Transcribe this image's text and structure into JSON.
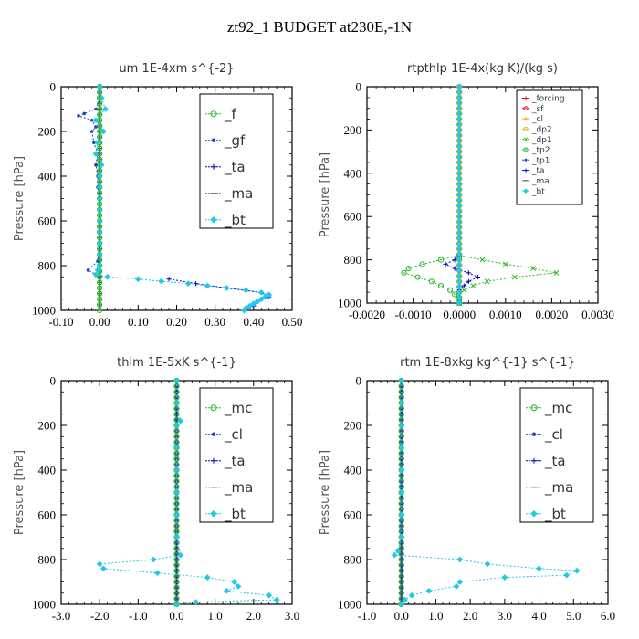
{
  "figure_title": "zt92_1  BUDGET at230E,-1N",
  "colors": {
    "green": "#22bb22",
    "blue": "#1a44cc",
    "navy": "#0000cc",
    "cyan": "#22c8e8",
    "red": "#e01010",
    "orange": "#ff9900",
    "yellow": "#ddbb00",
    "gray": "#666666"
  },
  "chart_data": [
    {
      "type": "line",
      "title": "um   1E-4xm s^{-2}",
      "ylabel": "Pressure [hPa]",
      "xlim": [
        -0.1,
        0.5
      ],
      "ylim": [
        1000,
        0
      ],
      "xticks": [
        "-0.10",
        "0.00",
        "0.10",
        "0.20",
        "0.30",
        "0.40",
        "0.50"
      ],
      "yticks": [
        "0",
        "200",
        "400",
        "600",
        "800",
        "1000"
      ],
      "legend_position": "top-right",
      "series": [
        {
          "name": "_f",
          "color": "#22bb22",
          "marker": "circle",
          "y": [
            0,
            100,
            200,
            300,
            400,
            500,
            600,
            700,
            800,
            900,
            1000
          ],
          "x": [
            0,
            0,
            0,
            0,
            0,
            0,
            0,
            0,
            0,
            0,
            0
          ]
        },
        {
          "name": "_gf",
          "color": "#1a44cc",
          "marker": "dot",
          "y": [
            0,
            50,
            100,
            120,
            130,
            150,
            180,
            200,
            250,
            300,
            350,
            400,
            450,
            500,
            600,
            700,
            780,
            820,
            850
          ],
          "x": [
            0,
            0.002,
            -0.01,
            -0.04,
            -0.055,
            -0.02,
            -0.01,
            -0.02,
            -0.015,
            -0.005,
            -0.01,
            -0.005,
            -0.005,
            0,
            0,
            0,
            -0.005,
            -0.03,
            0
          ]
        },
        {
          "name": "_ta",
          "color": "#0000cc",
          "marker": "plus",
          "y": [
            860,
            880,
            900,
            920,
            940,
            960,
            980,
            1000
          ],
          "x": [
            0.18,
            0.25,
            0.33,
            0.42,
            0.44,
            0.41,
            0.4,
            0.38
          ]
        },
        {
          "name": "_ma",
          "color": "#666666",
          "marker": "dash",
          "y": [
            0,
            500,
            1000
          ],
          "x": [
            0,
            0,
            0
          ]
        },
        {
          "name": "_bt",
          "color": "#22c8e8",
          "marker": "diamond",
          "y": [
            0,
            50,
            100,
            150,
            200,
            250,
            300,
            350,
            400,
            450,
            500,
            550,
            600,
            650,
            700,
            750,
            800,
            820,
            840,
            850,
            860,
            870,
            880,
            890,
            900,
            910,
            920,
            930,
            940,
            950,
            960,
            970,
            980,
            990,
            1000
          ],
          "x": [
            0,
            0.005,
            0.015,
            -0.01,
            0.01,
            -0.005,
            -0.01,
            0.005,
            0,
            0,
            0,
            0,
            0,
            0,
            0,
            0,
            0,
            -0.005,
            -0.01,
            0.02,
            0.1,
            0.16,
            0.23,
            0.28,
            0.33,
            0.38,
            0.42,
            0.44,
            0.43,
            0.42,
            0.41,
            0.4,
            0.39,
            0.38,
            0.375
          ]
        }
      ]
    },
    {
      "type": "line",
      "title": "rtpthlp   1E-4x(kg K)/(kg s)",
      "ylabel": "Pressure [hPa]",
      "xlim": [
        -0.002,
        0.003
      ],
      "ylim": [
        1000,
        0
      ],
      "xticks": [
        "-0.0020",
        "-0.0010",
        "0.0000",
        "0.0010",
        "0.0020",
        "0.0030"
      ],
      "yticks": [
        "0",
        "200",
        "400",
        "600",
        "800",
        "1000"
      ],
      "legend_position": "top-right",
      "series": [
        {
          "name": "_forcing",
          "color": "#e01010",
          "marker": "plus",
          "y": [
            0,
            100,
            200,
            300,
            400,
            500,
            600,
            700,
            800,
            900,
            1000
          ],
          "x": [
            0,
            0,
            0,
            0,
            0,
            0,
            0,
            0,
            0,
            0,
            0
          ]
        },
        {
          "name": "_sf",
          "color": "#e01010",
          "marker": "circle",
          "y": [
            0,
            500,
            1000
          ],
          "x": [
            0,
            0,
            0
          ]
        },
        {
          "name": "_cl",
          "color": "#ff9900",
          "marker": "plus",
          "y": [
            0,
            500,
            1000
          ],
          "x": [
            0,
            0,
            0
          ]
        },
        {
          "name": "_dp2",
          "color": "#ddbb00",
          "marker": "circle",
          "y": [
            0,
            500,
            1000
          ],
          "x": [
            0,
            0,
            0
          ]
        },
        {
          "name": "_dp1",
          "color": "#22bb22",
          "marker": "x",
          "y": [
            780,
            800,
            820,
            840,
            860,
            880,
            900,
            920,
            940,
            960,
            980,
            1000
          ],
          "x": [
            0,
            0.0005,
            0.001,
            0.0016,
            0.0021,
            0.0012,
            0.0006,
            0.0003,
            0.0001,
            0,
            0,
            0
          ]
        },
        {
          "name": "_tp2",
          "color": "#22bb22",
          "marker": "circle",
          "y": [
            780,
            800,
            820,
            840,
            860,
            880,
            900,
            920,
            940,
            960,
            980,
            1000
          ],
          "x": [
            0,
            -0.0004,
            -0.0008,
            -0.0011,
            -0.0012,
            -0.0009,
            -0.0006,
            -0.0004,
            -0.0002,
            -0.0001,
            0,
            0
          ]
        },
        {
          "name": "_tp1",
          "color": "#1a44cc",
          "marker": "dot",
          "y": [
            0,
            500,
            1000
          ],
          "x": [
            0,
            0,
            0
          ]
        },
        {
          "name": "_ta",
          "color": "#0000cc",
          "marker": "plus",
          "y": [
            780,
            800,
            820,
            840,
            860,
            880,
            900,
            920,
            940
          ],
          "x": [
            0,
            -0.0001,
            -0.0003,
            -0.0001,
            0.0002,
            0.0004,
            0.0002,
            0.0001,
            0
          ]
        },
        {
          "name": "_ma",
          "color": "#666666",
          "marker": "dash",
          "y": [
            0,
            500,
            1000
          ],
          "x": [
            0,
            0,
            0
          ]
        },
        {
          "name": "_bt",
          "color": "#22c8e8",
          "marker": "diamond",
          "y": [
            0,
            500,
            1000
          ],
          "x": [
            0,
            0,
            0
          ]
        }
      ]
    },
    {
      "type": "line",
      "title": "thlm   1E-5xK s^{-1}",
      "ylabel": "Pressure [hPa]",
      "xlim": [
        -3.0,
        3.0
      ],
      "ylim": [
        1000,
        0
      ],
      "xticks": [
        "-3.0",
        "-2.0",
        "-1.0",
        "0.0",
        "1.0",
        "2.0",
        "3.0"
      ],
      "yticks": [
        "0",
        "200",
        "400",
        "600",
        "800",
        "1000"
      ],
      "legend_position": "top-right",
      "series": [
        {
          "name": "_mc",
          "color": "#22bb22",
          "marker": "circle",
          "y": [
            0,
            100,
            200,
            300,
            400,
            500,
            600,
            700,
            800,
            900,
            1000
          ],
          "x": [
            0,
            0,
            0,
            0,
            0,
            0,
            0,
            0,
            0,
            0,
            0
          ]
        },
        {
          "name": "_cl",
          "color": "#1a44cc",
          "marker": "dot",
          "y": [
            0,
            500,
            1000
          ],
          "x": [
            0,
            0,
            0
          ]
        },
        {
          "name": "_ta",
          "color": "#0000cc",
          "marker": "plus",
          "y": [
            0,
            500,
            1000
          ],
          "x": [
            0,
            0,
            0
          ]
        },
        {
          "name": "_ma",
          "color": "#666666",
          "marker": "dash",
          "y": [
            0,
            500,
            1000
          ],
          "x": [
            0,
            0,
            0
          ]
        },
        {
          "name": "_bt",
          "color": "#22c8e8",
          "marker": "diamond",
          "y": [
            0,
            100,
            180,
            200,
            300,
            400,
            500,
            600,
            700,
            780,
            800,
            820,
            840,
            860,
            880,
            900,
            920,
            940,
            960,
            980,
            990,
            1000
          ],
          "x": [
            0,
            0,
            0.1,
            0,
            0,
            0,
            0,
            0,
            0,
            0.1,
            -0.6,
            -2.0,
            -1.9,
            -0.5,
            0.8,
            1.5,
            1.6,
            1.3,
            2.4,
            2.6,
            0.5,
            0
          ]
        }
      ]
    },
    {
      "type": "line",
      "title": "rtm   1E-8xkg kg^{-1} s^{-1}",
      "ylabel": "Pressure [hPa]",
      "xlim": [
        -1.0,
        6.0
      ],
      "ylim": [
        1000,
        0
      ],
      "xticks": [
        "-1.0",
        "0.0",
        "1.0",
        "2.0",
        "3.0",
        "4.0",
        "5.0",
        "6.0"
      ],
      "yticks": [
        "0",
        "200",
        "400",
        "600",
        "800",
        "1000"
      ],
      "legend_position": "top-right",
      "series": [
        {
          "name": "_mc",
          "color": "#22bb22",
          "marker": "circle",
          "y": [
            0,
            100,
            200,
            300,
            400,
            500,
            600,
            700,
            800,
            900,
            1000
          ],
          "x": [
            0,
            0,
            0,
            0,
            0,
            0,
            0,
            0,
            0,
            0,
            0
          ]
        },
        {
          "name": "_cl",
          "color": "#1a44cc",
          "marker": "dot",
          "y": [
            0,
            500,
            1000
          ],
          "x": [
            0,
            0,
            0
          ]
        },
        {
          "name": "_ta",
          "color": "#0000cc",
          "marker": "plus",
          "y": [
            0,
            500,
            1000
          ],
          "x": [
            0,
            0,
            0
          ]
        },
        {
          "name": "_ma",
          "color": "#666666",
          "marker": "dash",
          "y": [
            0,
            500,
            1000
          ],
          "x": [
            0,
            0,
            0
          ]
        },
        {
          "name": "_bt",
          "color": "#22c8e8",
          "marker": "diamond",
          "y": [
            0,
            100,
            200,
            300,
            400,
            500,
            600,
            700,
            760,
            780,
            800,
            820,
            840,
            850,
            870,
            880,
            900,
            920,
            940,
            960,
            980,
            1000
          ],
          "x": [
            0,
            0,
            0,
            0,
            0,
            0,
            0,
            0,
            -0.1,
            -0.2,
            1.7,
            2.5,
            4.0,
            5.1,
            4.8,
            3.0,
            1.7,
            1.6,
            0.8,
            0.3,
            0.1,
            0
          ]
        }
      ]
    }
  ]
}
